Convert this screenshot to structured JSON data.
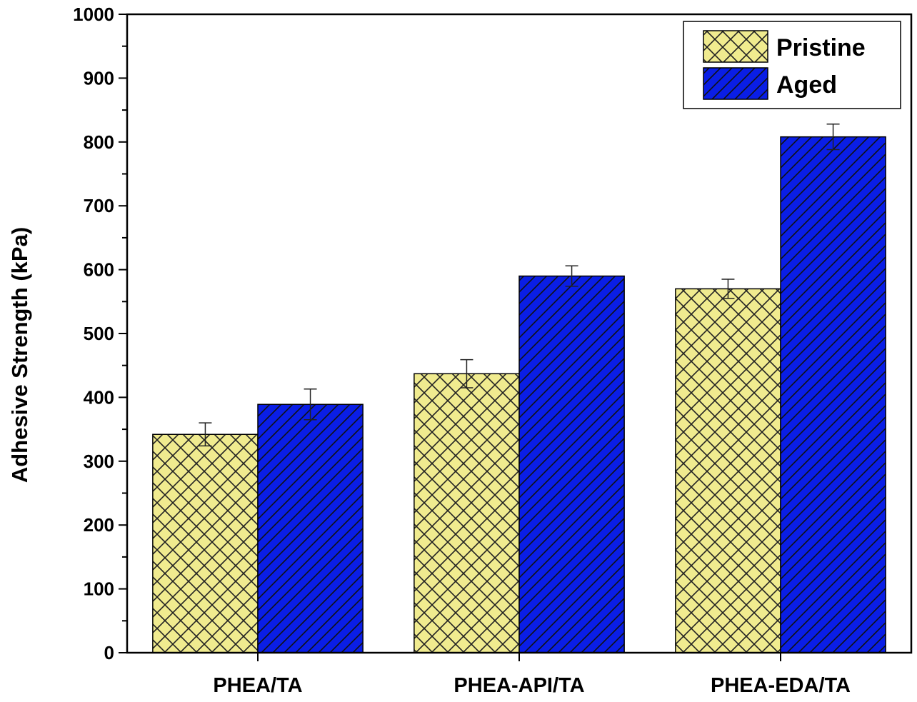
{
  "chart_data": {
    "type": "bar",
    "title": "",
    "xlabel": "",
    "ylabel": "Adhesive Strength (kPa)",
    "ylim": [
      0,
      1000
    ],
    "yticks": [
      0,
      100,
      200,
      300,
      400,
      500,
      600,
      700,
      800,
      900,
      1000
    ],
    "ytick_labels": [
      "0",
      "100",
      "200",
      "300",
      "400",
      "500",
      "600",
      "700",
      "800",
      "900",
      "1000"
    ],
    "categories": [
      "PHEA/TA",
      "PHEA-API/TA",
      "PHEA-EDA/TA"
    ],
    "series": [
      {
        "name": "Pristine",
        "values": [
          342,
          437,
          570
        ],
        "errors": [
          18,
          22,
          15
        ],
        "color": "#f0eb8f",
        "pattern": "crosshatch"
      },
      {
        "name": "Aged",
        "values": [
          389,
          590,
          808
        ],
        "errors": [
          24,
          16,
          20
        ],
        "color": "#0a1ee6",
        "pattern": "diagonal"
      }
    ],
    "legend": {
      "position": "top-right"
    },
    "grid": false
  }
}
